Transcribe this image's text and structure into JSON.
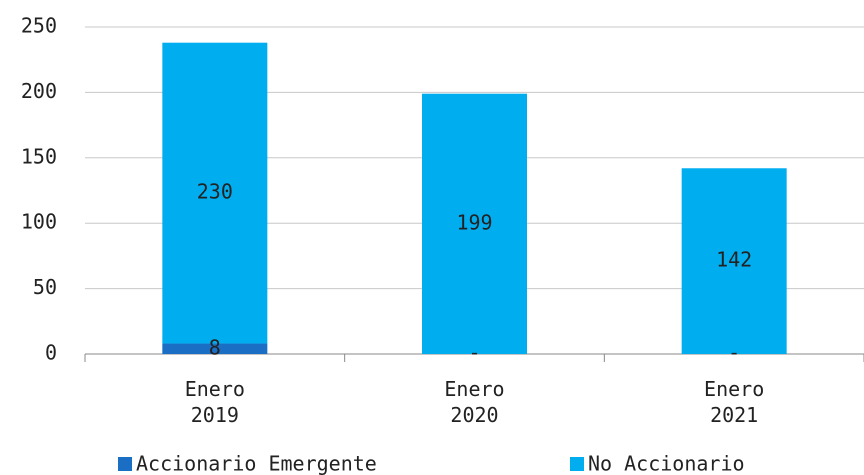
{
  "chart_data": {
    "type": "stacked-bar",
    "categories": [
      "Enero 2019",
      "Enero 2020",
      "Enero 2021"
    ],
    "series": [
      {
        "name": "Accionario Emergente",
        "color": "#1a6fc4",
        "values": [
          8,
          0,
          0
        ],
        "value_labels": [
          "8",
          "-",
          "-"
        ]
      },
      {
        "name": "No Accionario",
        "color": "#00aeef",
        "values": [
          230,
          199,
          142
        ]
      }
    ],
    "ylim": [
      0,
      250
    ],
    "yticks": [
      0,
      50,
      100,
      150,
      200,
      250
    ],
    "grid": true,
    "legend": "bottom"
  }
}
